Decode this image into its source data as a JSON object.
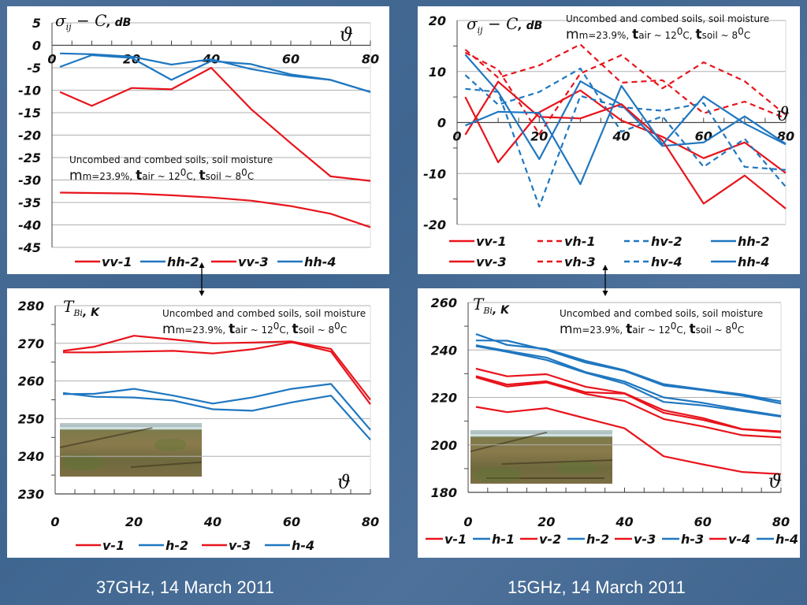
{
  "captions": {
    "left": "37GHz,   14 March 2011",
    "right": "15GHz,   14 March 2011"
  },
  "annotation": {
    "line1": "Uncombed and combed soils, soil moisture",
    "m_big": "m",
    "m_rest": "m=23.9%, ",
    "t1_big": "t",
    "t1_rest": "air ~ 12",
    "deg": "0",
    "c1": "C, ",
    "t2_big": "t",
    "t2_rest": "soil ~ 8",
    "c2": "C"
  },
  "colors": {
    "red": "#e8141c",
    "blue": "#1f77c0",
    "grid": "#b0b0b0",
    "axis": "#444444"
  },
  "chart_data": [
    {
      "id": "tl",
      "type": "line",
      "title": "",
      "ylabel_symbol": "σ",
      "ylabel_sub": "ij",
      "ylabel_rest": " − C",
      "ylabel_unit": ", dB",
      "xlabel": "ϑ",
      "xlim": [
        0,
        80
      ],
      "ylim": [
        -45,
        5
      ],
      "xticks": [
        0,
        20,
        40,
        60,
        80
      ],
      "yticks": [
        5,
        0,
        -5,
        -10,
        -15,
        -20,
        -25,
        -30,
        -35,
        -40,
        -45
      ],
      "grid": true,
      "x_labels_on_zero_line": true,
      "legend": "bottom",
      "series": [
        {
          "name": "vv-1",
          "color": "red",
          "dash": false,
          "x": [
            2,
            10,
            20,
            30,
            40,
            50,
            60,
            70,
            80
          ],
          "y": [
            -32.8,
            -32.9,
            -33.0,
            -33.4,
            -33.9,
            -34.6,
            -35.8,
            -37.5,
            -40.5
          ]
        },
        {
          "name": "hh-2",
          "color": "blue",
          "dash": false,
          "x": [
            2,
            10,
            20,
            30,
            40,
            50,
            60,
            70,
            80
          ],
          "y": [
            -1.8,
            -2.0,
            -2.5,
            -4.3,
            -3.1,
            -5.3,
            -6.8,
            -7.7,
            -10.4
          ]
        },
        {
          "name": "vv-3",
          "color": "red",
          "dash": false,
          "x": [
            2,
            10,
            20,
            30,
            40,
            50,
            60,
            70,
            80
          ],
          "y": [
            -10.4,
            -13.5,
            -9.5,
            -9.8,
            -5.0,
            -14.2,
            -21.8,
            -29.2,
            -30.2
          ]
        },
        {
          "name": "hh-4",
          "color": "blue",
          "dash": false,
          "x": [
            2,
            10,
            20,
            30,
            40,
            50,
            60,
            70,
            80
          ],
          "y": [
            -4.8,
            -2.2,
            -2.8,
            -7.7,
            -3.5,
            -4.2,
            -6.5,
            -7.7,
            -10.4
          ]
        }
      ]
    },
    {
      "id": "tr",
      "type": "line",
      "ylabel_symbol": "σ",
      "ylabel_sub": "ij",
      "ylabel_rest": " − C",
      "ylabel_unit": ", dB",
      "xlabel": "ϑ",
      "xlim": [
        0,
        80
      ],
      "ylim": [
        -20,
        20
      ],
      "xticks": [
        0,
        20,
        40,
        60,
        80
      ],
      "yticks": [
        20,
        10,
        0,
        -10,
        -20
      ],
      "grid": true,
      "x_labels_on_zero_line": true,
      "legend": "bottom",
      "series": [
        {
          "name": "vv-1",
          "color": "red",
          "dash": false,
          "x": [
            2,
            10,
            20,
            30,
            40,
            50,
            60,
            70,
            80
          ],
          "y": [
            5.0,
            -7.8,
            2.0,
            6.3,
            0.4,
            -2.8,
            -7.0,
            -3.9,
            -9.9
          ]
        },
        {
          "name": "vh-1",
          "color": "red",
          "dash": true,
          "x": [
            2,
            10,
            20,
            30,
            40,
            50,
            60,
            70,
            80
          ],
          "y": [
            14.3,
            8.8,
            11.2,
            15.3,
            7.8,
            8.3,
            1.8,
            4.1,
            0.8
          ]
        },
        {
          "name": "hv-2",
          "color": "blue",
          "dash": true,
          "x": [
            2,
            10,
            20,
            30,
            40,
            50,
            60,
            70,
            80
          ],
          "y": [
            9.3,
            3.5,
            6.0,
            10.6,
            -1.8,
            1.2,
            -8.7,
            -3.2,
            -12.6
          ]
        },
        {
          "name": "hh-2",
          "color": "blue",
          "dash": false,
          "x": [
            2,
            10,
            20,
            30,
            40,
            50,
            60,
            70,
            80
          ],
          "y": [
            13.3,
            6.0,
            -7.2,
            8.1,
            3.5,
            -4.6,
            -3.9,
            1.2,
            -4.2
          ]
        },
        {
          "name": "vv-3",
          "color": "red",
          "dash": false,
          "x": [
            2,
            10,
            20,
            30,
            40,
            50,
            60,
            70,
            80
          ],
          "y": [
            -2.4,
            8.0,
            1.1,
            0.8,
            3.6,
            -3.5,
            -15.9,
            -10.4,
            -16.9
          ]
        },
        {
          "name": "vh-3",
          "color": "red",
          "dash": true,
          "x": [
            2,
            10,
            20,
            30,
            40,
            50,
            60,
            70,
            80
          ],
          "y": [
            13.7,
            10.4,
            -2.3,
            9.6,
            13.2,
            6.7,
            11.8,
            8.1,
            1.5
          ]
        },
        {
          "name": "hv-4",
          "color": "blue",
          "dash": true,
          "x": [
            2,
            10,
            20,
            30,
            40,
            50,
            60,
            70,
            80
          ],
          "y": [
            6.6,
            6.0,
            -16.5,
            5.2,
            3.0,
            2.3,
            3.8,
            -8.7,
            -9.3
          ]
        },
        {
          "name": "hh-4",
          "color": "blue",
          "dash": false,
          "x": [
            2,
            10,
            20,
            30,
            40,
            50,
            60,
            70,
            80
          ],
          "y": [
            -0.6,
            2.1,
            1.9,
            -12.1,
            7.2,
            -4.3,
            5.1,
            -0.2,
            -4.3
          ]
        }
      ]
    },
    {
      "id": "bl",
      "type": "line",
      "ylabel_symbol": "T",
      "ylabel_sub": "Bi",
      "ylabel_rest": "",
      "ylabel_unit": ", K",
      "xlabel": "ϑ",
      "xlim": [
        0,
        80
      ],
      "ylim": [
        230,
        280
      ],
      "xticks": [
        0,
        20,
        40,
        60,
        80
      ],
      "yticks": [
        280,
        270,
        260,
        250,
        240,
        230
      ],
      "grid": true,
      "x_labels_on_zero_line": false,
      "legend": "bottom",
      "series": [
        {
          "name": "v-1",
          "color": "red",
          "dash": false,
          "x": [
            2,
            10,
            20,
            30,
            40,
            50,
            60,
            70,
            80
          ],
          "y": [
            267.6,
            267.6,
            267.8,
            268.0,
            267.3,
            268.4,
            270.3,
            267.8,
            253.8
          ]
        },
        {
          "name": "h-2",
          "color": "blue",
          "dash": false,
          "x": [
            2,
            10,
            20,
            30,
            40,
            50,
            60,
            70,
            80
          ],
          "y": [
            256.8,
            255.8,
            255.6,
            254.8,
            252.5,
            252.1,
            254.3,
            256.1,
            244.4
          ]
        },
        {
          "name": "v-3",
          "color": "red",
          "dash": false,
          "x": [
            2,
            10,
            20,
            30,
            40,
            50,
            60,
            70,
            80
          ],
          "y": [
            268.0,
            269.1,
            272.0,
            271.0,
            270.0,
            270.2,
            270.5,
            268.5,
            255.0
          ]
        },
        {
          "name": "h-4",
          "color": "blue",
          "dash": false,
          "x": [
            2,
            10,
            20,
            30,
            40,
            50,
            60,
            70,
            80
          ],
          "y": [
            256.5,
            256.6,
            257.9,
            256.1,
            254.0,
            255.6,
            257.9,
            259.2,
            247.0
          ]
        }
      ]
    },
    {
      "id": "br",
      "type": "line",
      "ylabel_symbol": "T",
      "ylabel_sub": "Bi",
      "ylabel_rest": "",
      "ylabel_unit": ", K",
      "xlabel": "ϑ",
      "xlim": [
        0,
        80
      ],
      "ylim": [
        180,
        260
      ],
      "xticks": [
        0,
        20,
        40,
        60,
        80
      ],
      "yticks": [
        260,
        240,
        220,
        200,
        180
      ],
      "grid": true,
      "x_labels_on_zero_line": false,
      "legend": "bottom",
      "series": [
        {
          "name": "v-1",
          "color": "red",
          "dash": false,
          "x": [
            2,
            10,
            20,
            30,
            40,
            50,
            60,
            70,
            80
          ],
          "y": [
            216.0,
            213.8,
            215.5,
            211.2,
            207.0,
            195.2,
            191.8,
            188.6,
            187.7
          ]
        },
        {
          "name": "h-1",
          "color": "blue",
          "dash": false,
          "x": [
            2,
            10,
            20,
            30,
            40,
            50,
            60,
            70,
            80
          ],
          "y": [
            246.7,
            242.1,
            240.4,
            235.4,
            231.5,
            225.6,
            223.4,
            221.3,
            218.3
          ]
        },
        {
          "name": "v-2",
          "color": "red",
          "dash": false,
          "x": [
            2,
            10,
            20,
            30,
            40,
            50,
            60,
            70,
            80
          ],
          "y": [
            232.1,
            228.9,
            229.8,
            224.5,
            221.8,
            214.6,
            211.3,
            206.7,
            205.7
          ]
        },
        {
          "name": "h-2",
          "color": "blue",
          "dash": false,
          "x": [
            2,
            10,
            20,
            30,
            40,
            50,
            60,
            70,
            80
          ],
          "y": [
            241.6,
            239.2,
            235.8,
            230.4,
            225.8,
            218.1,
            216.6,
            214.3,
            211.9
          ]
        },
        {
          "name": "v-3",
          "color": "red",
          "dash": false,
          "x": [
            2,
            10,
            20,
            30,
            40,
            50,
            60,
            70,
            80
          ],
          "y": [
            229.0,
            225.4,
            226.8,
            222.2,
            221.6,
            213.5,
            210.5,
            206.6,
            205.4
          ]
        },
        {
          "name": "h-3",
          "color": "blue",
          "dash": false,
          "x": [
            2,
            10,
            20,
            30,
            40,
            50,
            60,
            70,
            80
          ],
          "y": [
            244.0,
            243.9,
            240.0,
            234.7,
            231.2,
            225.0,
            223.1,
            220.8,
            217.4
          ]
        },
        {
          "name": "v-4",
          "color": "red",
          "dash": false,
          "x": [
            2,
            10,
            20,
            30,
            40,
            50,
            60,
            70,
            80
          ],
          "y": [
            228.5,
            224.6,
            226.3,
            221.5,
            218.5,
            210.9,
            207.8,
            204.1,
            203.1
          ]
        },
        {
          "name": "h-4",
          "color": "blue",
          "dash": false,
          "x": [
            2,
            10,
            20,
            30,
            40,
            50,
            60,
            70,
            80
          ],
          "y": [
            242.0,
            239.6,
            236.8,
            230.7,
            226.7,
            220.0,
            217.7,
            214.8,
            212.2
          ]
        }
      ]
    }
  ]
}
